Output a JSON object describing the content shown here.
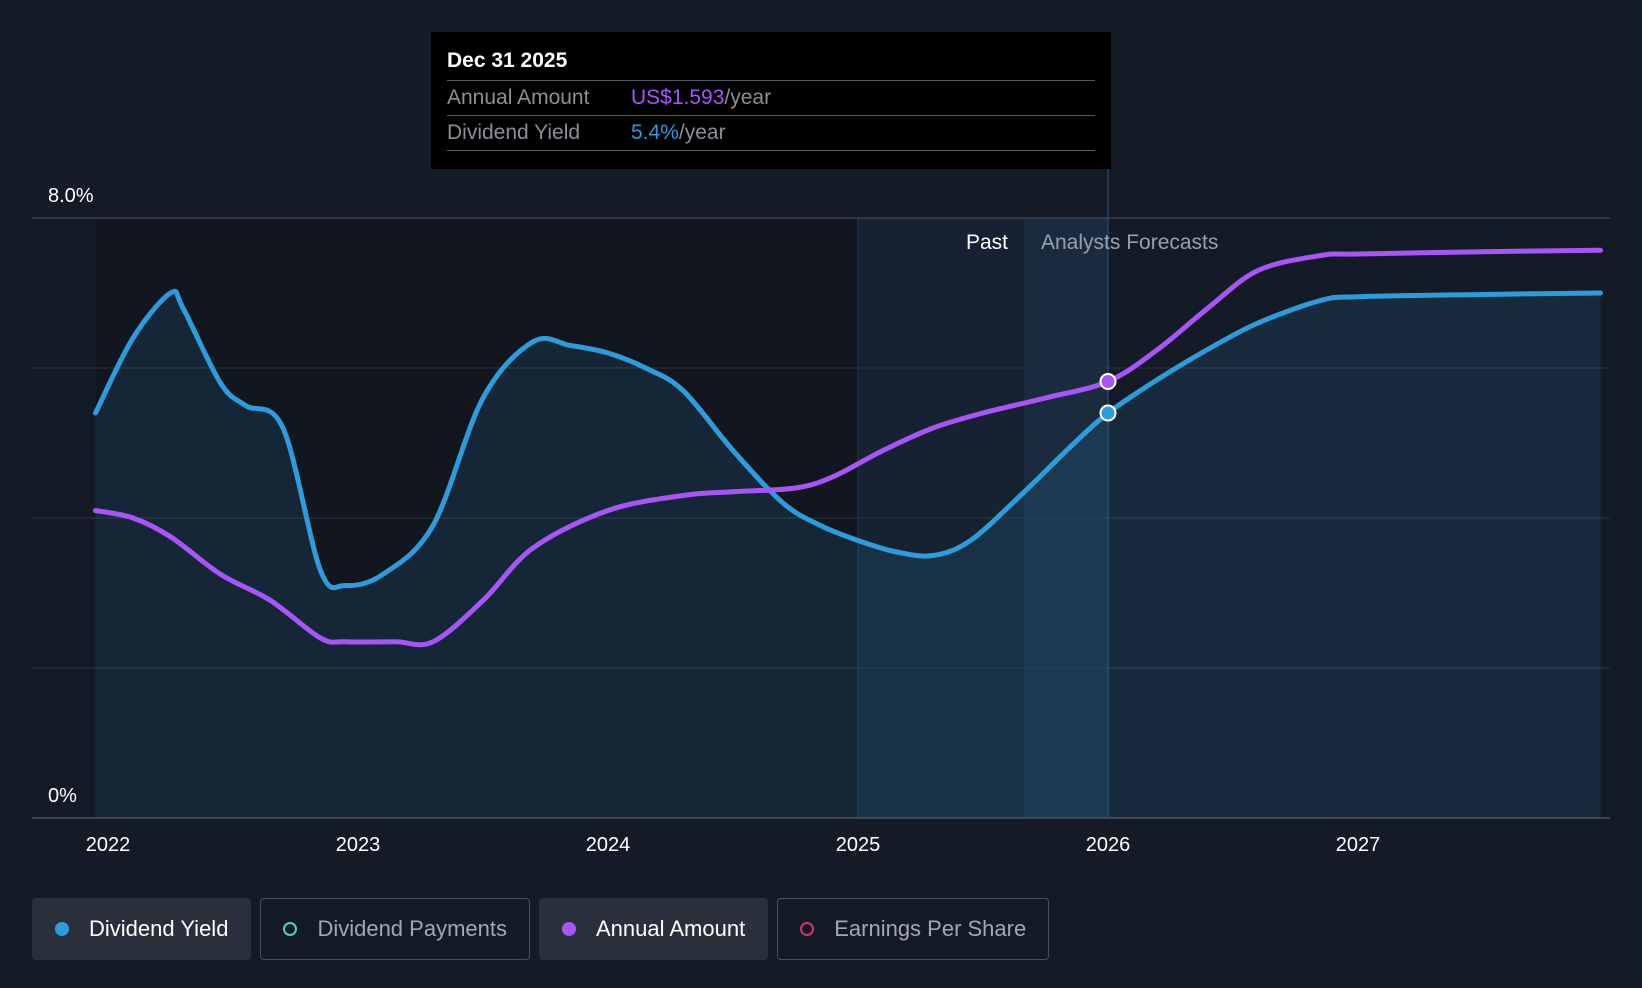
{
  "tooltip": {
    "date": "Dec 31 2025",
    "rows": [
      {
        "label": "Annual Amount",
        "value": "US$1.593",
        "unit": "/year"
      },
      {
        "label": "Dividend Yield",
        "value": "5.4%",
        "unit": "/year"
      }
    ]
  },
  "region_labels": {
    "past": "Past",
    "forecast": "Analysts Forecasts"
  },
  "legend": [
    {
      "label": "Dividend Yield",
      "color": "#2d9cdb",
      "active": true,
      "filled": true
    },
    {
      "label": "Dividend Payments",
      "color": "#4fd1c5",
      "active": false,
      "filled": false
    },
    {
      "label": "Annual Amount",
      "color": "#a855f7",
      "active": true,
      "filled": true
    },
    {
      "label": "Earnings Per Share",
      "color": "#d6336c",
      "active": false,
      "filled": false
    }
  ],
  "colors": {
    "yield": "#2d9cdb",
    "amount": "#a855f7",
    "background": "#151b26"
  },
  "chart_data": {
    "type": "line",
    "y_tick_labels": [
      "8.0%",
      "0%"
    ],
    "ylim": [
      0,
      8
    ],
    "xlim": [
      2021.75,
      2027.97
    ],
    "x_tick_labels": [
      "2022",
      "2023",
      "2024",
      "2025",
      "2026",
      "2027"
    ],
    "x_ticks": [
      2022,
      2023,
      2024,
      2025,
      2026,
      2027
    ],
    "grid": true,
    "highlight_date": 2026.0,
    "past_start": 2025.0,
    "past_end": 2026.0,
    "series": [
      {
        "name": "Dividend Yield",
        "color": "#2d9cdb",
        "area": true,
        "x": [
          2021.95,
          2022.1,
          2022.25,
          2022.3,
          2022.45,
          2022.55,
          2022.7,
          2022.85,
          2022.95,
          2023.1,
          2023.3,
          2023.5,
          2023.7,
          2023.85,
          2024.0,
          2024.15,
          2024.3,
          2024.5,
          2024.7,
          2024.85,
          2025.0,
          2025.15,
          2025.3,
          2025.45,
          2025.65,
          2025.85,
          2026.0,
          2026.2,
          2026.4,
          2026.6,
          2026.85,
          2027.0,
          2027.5,
          2027.97
        ],
        "y": [
          5.4,
          6.4,
          7.0,
          6.8,
          5.8,
          5.5,
          5.2,
          3.3,
          3.1,
          3.25,
          3.9,
          5.6,
          6.35,
          6.3,
          6.2,
          6.0,
          5.7,
          4.9,
          4.2,
          3.9,
          3.7,
          3.55,
          3.5,
          3.7,
          4.3,
          4.95,
          5.4,
          5.85,
          6.25,
          6.6,
          6.9,
          6.95,
          6.98,
          7.0
        ]
      },
      {
        "name": "Annual Amount",
        "color": "#a855f7",
        "area": false,
        "x": [
          2021.95,
          2022.1,
          2022.25,
          2022.45,
          2022.65,
          2022.85,
          2022.95,
          2023.15,
          2023.3,
          2023.5,
          2023.7,
          2024.0,
          2024.3,
          2024.5,
          2024.75,
          2024.9,
          2025.1,
          2025.3,
          2025.5,
          2025.75,
          2026.0,
          2026.2,
          2026.4,
          2026.6,
          2026.85,
          2027.0,
          2027.5,
          2027.97
        ],
        "y": [
          4.1,
          4.0,
          3.75,
          3.25,
          2.9,
          2.4,
          2.35,
          2.35,
          2.35,
          2.9,
          3.6,
          4.1,
          4.3,
          4.35,
          4.4,
          4.55,
          4.9,
          5.2,
          5.4,
          5.6,
          5.82,
          6.25,
          6.8,
          7.3,
          7.5,
          7.52,
          7.55,
          7.57
        ]
      }
    ]
  }
}
